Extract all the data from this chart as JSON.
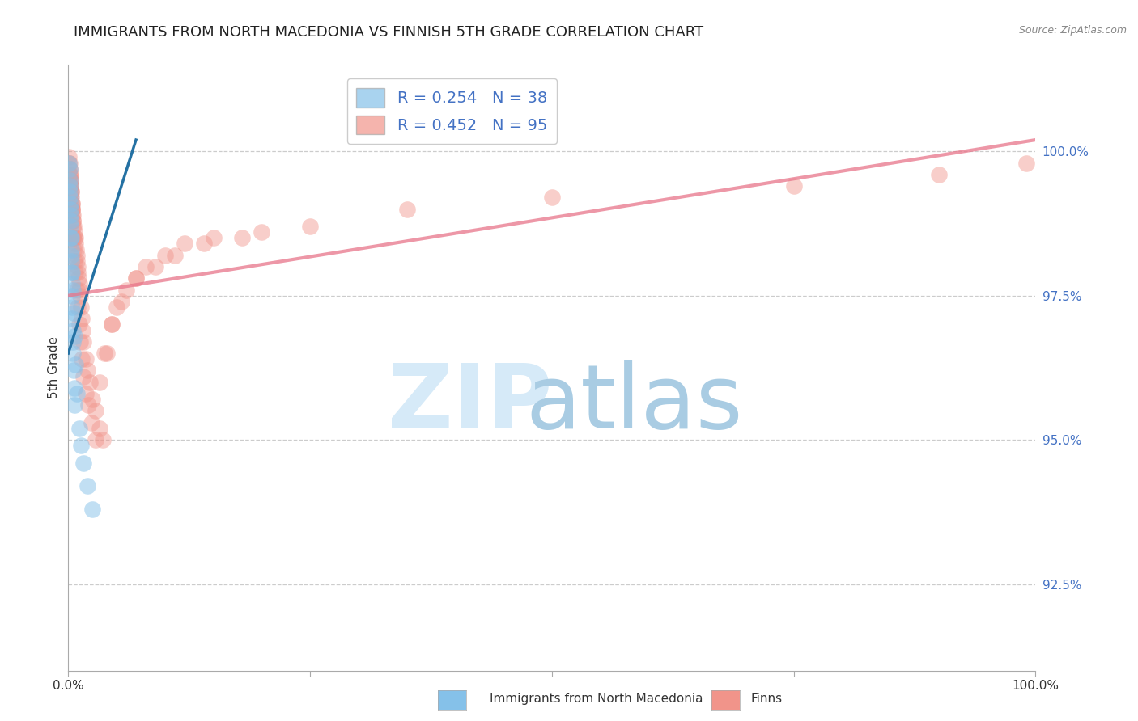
{
  "title": "IMMIGRANTS FROM NORTH MACEDONIA VS FINNISH 5TH GRADE CORRELATION CHART",
  "source": "Source: ZipAtlas.com",
  "ylabel": "5th Grade",
  "ylabel_ticks": [
    92.5,
    95.0,
    97.5,
    100.0
  ],
  "ylabel_tick_labels": [
    "92.5%",
    "95.0%",
    "97.5%",
    "100.0%"
  ],
  "xlim": [
    0.0,
    100.0
  ],
  "ylim": [
    91.0,
    101.5
  ],
  "blue_R": 0.254,
  "blue_N": 38,
  "pink_R": 0.452,
  "pink_N": 95,
  "blue_color": "#85c1e9",
  "pink_color": "#f1948a",
  "trend_blue": "#2471a3",
  "trend_pink": "#e8758a",
  "watermark_zip_color": "#d6eaf8",
  "watermark_atlas_color": "#a9cce3",
  "background": "#ffffff",
  "blue_x": [
    0.08,
    0.12,
    0.15,
    0.18,
    0.2,
    0.22,
    0.25,
    0.28,
    0.3,
    0.32,
    0.35,
    0.38,
    0.4,
    0.42,
    0.45,
    0.48,
    0.5,
    0.55,
    0.6,
    0.65,
    0.1,
    0.13,
    0.16,
    0.2,
    0.24,
    0.28,
    0.33,
    0.38,
    0.44,
    0.52,
    0.62,
    0.75,
    0.9,
    1.1,
    1.35,
    1.6,
    2.0,
    2.5
  ],
  "blue_y": [
    99.8,
    99.5,
    99.3,
    99.1,
    98.9,
    98.7,
    98.5,
    98.3,
    98.1,
    97.9,
    97.7,
    97.5,
    97.3,
    97.1,
    96.9,
    96.7,
    96.5,
    96.2,
    95.9,
    95.6,
    99.7,
    99.4,
    99.2,
    99.0,
    98.8,
    98.5,
    98.2,
    97.9,
    97.6,
    97.2,
    96.8,
    96.3,
    95.8,
    95.2,
    94.9,
    94.6,
    94.2,
    93.8
  ],
  "pink_x": [
    0.05,
    0.08,
    0.1,
    0.12,
    0.14,
    0.16,
    0.18,
    0.2,
    0.22,
    0.24,
    0.26,
    0.28,
    0.3,
    0.32,
    0.35,
    0.38,
    0.4,
    0.42,
    0.45,
    0.48,
    0.5,
    0.55,
    0.6,
    0.65,
    0.7,
    0.75,
    0.8,
    0.85,
    0.9,
    0.95,
    1.0,
    1.05,
    1.1,
    1.15,
    1.2,
    1.3,
    1.4,
    1.5,
    1.6,
    1.8,
    2.0,
    2.2,
    2.5,
    2.8,
    3.2,
    3.6,
    4.0,
    4.5,
    5.0,
    6.0,
    7.0,
    8.0,
    10.0,
    12.0,
    15.0,
    20.0,
    0.1,
    0.14,
    0.18,
    0.22,
    0.26,
    0.3,
    0.35,
    0.4,
    0.45,
    0.5,
    0.58,
    0.66,
    0.75,
    0.85,
    0.95,
    1.1,
    1.25,
    1.4,
    1.6,
    1.85,
    2.1,
    2.4,
    2.8,
    3.2,
    3.7,
    4.5,
    5.5,
    7.0,
    9.0,
    11.0,
    14.0,
    18.0,
    25.0,
    35.0,
    50.0,
    75.0,
    90.0,
    99.0,
    0.3,
    0.45
  ],
  "pink_y": [
    99.9,
    99.8,
    99.8,
    99.7,
    99.7,
    99.6,
    99.6,
    99.5,
    99.5,
    99.4,
    99.4,
    99.3,
    99.3,
    99.2,
    99.1,
    99.1,
    99.0,
    99.0,
    98.9,
    98.8,
    98.8,
    98.7,
    98.6,
    98.5,
    98.5,
    98.4,
    98.3,
    98.2,
    98.1,
    98.0,
    97.9,
    97.8,
    97.7,
    97.6,
    97.5,
    97.3,
    97.1,
    96.9,
    96.7,
    96.4,
    96.2,
    96.0,
    95.7,
    95.5,
    95.2,
    95.0,
    96.5,
    97.0,
    97.3,
    97.6,
    97.8,
    98.0,
    98.2,
    98.4,
    98.5,
    98.6,
    99.6,
    99.5,
    99.4,
    99.3,
    99.2,
    99.1,
    99.0,
    98.9,
    98.7,
    98.5,
    98.3,
    98.1,
    97.9,
    97.6,
    97.3,
    97.0,
    96.7,
    96.4,
    96.1,
    95.8,
    95.6,
    95.3,
    95.0,
    96.0,
    96.5,
    97.0,
    97.4,
    97.8,
    98.0,
    98.2,
    98.4,
    98.5,
    98.7,
    99.0,
    99.2,
    99.4,
    99.6,
    99.8,
    99.0,
    98.5
  ],
  "blue_trend_x": [
    0.0,
    7.0
  ],
  "blue_trend_y": [
    96.5,
    100.2
  ],
  "pink_trend_x": [
    0.0,
    100.0
  ],
  "pink_trend_y": [
    97.5,
    100.2
  ]
}
